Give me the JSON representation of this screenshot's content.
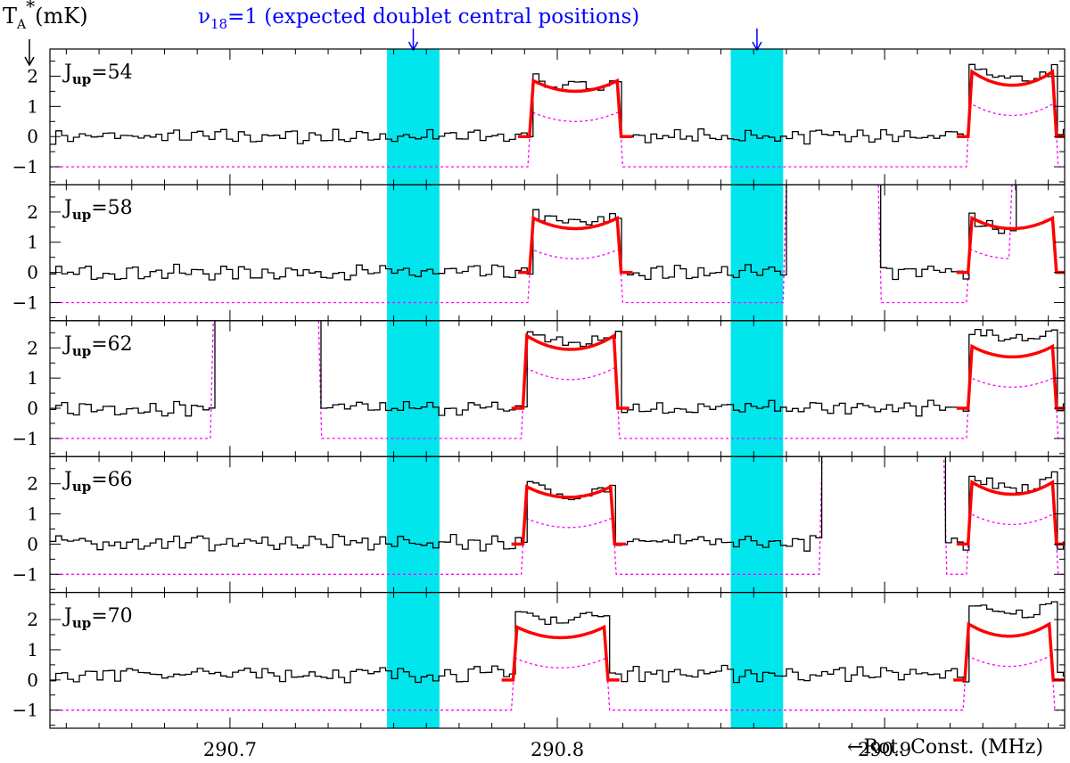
{
  "title_prefix": "ν",
  "title_sub": "18",
  "title_rest": "=1 (expected doublet central positions)",
  "ylabel_main": "T",
  "ylabel_sub": "A",
  "ylabel_sup": "*",
  "ylabel_rest": "(mK)",
  "xlabel": "Rot. Const. (MHz)",
  "chart_data": {
    "type": "line",
    "x_range": [
      290.645,
      290.955
    ],
    "ylim": [
      -1.6,
      2.9
    ],
    "x_ticks": [
      290.7,
      290.8,
      290.9
    ],
    "x_tick_labels": [
      "290.7",
      "290.8",
      "290.9"
    ],
    "y_ticks": [
      -1,
      0,
      1,
      2
    ],
    "y_tick_labels": [
      "−1",
      "0",
      "1",
      "2"
    ],
    "colors": {
      "observed": "#000000",
      "fit": "#ff0000",
      "model": "#ff00ff",
      "band": "#00e6ec"
    },
    "highlight_bands": [
      [
        290.748,
        290.764
      ],
      [
        290.853,
        290.869
      ]
    ],
    "band_arrows": [
      290.756,
      290.861
    ],
    "panels": [
      {
        "label": "J",
        "label_sub": "up",
        "label_value": "=54",
        "features": [
          {
            "lo": 290.7915,
            "hi": 290.8195,
            "peak": 1.85,
            "mid": 1.5,
            "obs_over": 0.15
          },
          {
            "lo": 290.9255,
            "hi": 290.9525,
            "peak": 2.15,
            "mid": 1.7,
            "obs_over": 0.2
          }
        ],
        "noise": [
          {
            "x0": 290.645,
            "x1": 290.955,
            "amp": 0.15,
            "base": 0.0
          }
        ],
        "strong": []
      },
      {
        "label": "J",
        "label_sub": "up",
        "label_value": "=58",
        "features": [
          {
            "lo": 290.7915,
            "hi": 290.8195,
            "peak": 1.8,
            "mid": 1.45,
            "obs_over": 0.15
          },
          {
            "lo": 290.9255,
            "hi": 290.9525,
            "peak": 1.8,
            "mid": 1.45,
            "obs_over": 0.0
          }
        ],
        "noise": [
          {
            "x0": 290.645,
            "x1": 290.955,
            "amp": 0.15,
            "base": 0.0
          }
        ],
        "strong": [
          {
            "lo": 290.869,
            "hi": 290.8985
          },
          {
            "lo": 290.9385,
            "hi": 290.957
          }
        ]
      },
      {
        "label": "J",
        "label_sub": "up",
        "label_value": "=62",
        "features": [
          {
            "lo": 290.7895,
            "hi": 290.8185,
            "peak": 2.4,
            "mid": 1.95,
            "obs_over": 0.2
          },
          {
            "lo": 290.9255,
            "hi": 290.9525,
            "peak": 2.05,
            "mid": 1.7,
            "obs_over": 0.6
          }
        ],
        "noise": [
          {
            "x0": 290.645,
            "x1": 290.955,
            "amp": 0.15,
            "base": 0.0
          }
        ],
        "strong": [
          {
            "lo": 290.6945,
            "hi": 290.7275
          }
        ]
      },
      {
        "label": "J",
        "label_sub": "up",
        "label_value": "=66",
        "features": [
          {
            "lo": 290.7895,
            "hi": 290.8175,
            "peak": 1.9,
            "mid": 1.55,
            "obs_over": 0.1
          },
          {
            "lo": 290.9255,
            "hi": 290.9525,
            "peak": 2.05,
            "mid": 1.65,
            "obs_over": 0.25
          }
        ],
        "noise": [
          {
            "x0": 290.645,
            "x1": 290.955,
            "amp": 0.18,
            "base": 0.05
          }
        ],
        "strong": [
          {
            "lo": 290.8805,
            "hi": 290.9185
          }
        ]
      },
      {
        "label": "J",
        "label_sub": "up",
        "label_value": "=70",
        "features": [
          {
            "lo": 290.7865,
            "hi": 290.8155,
            "peak": 1.75,
            "mid": 1.4,
            "obs_over": 0.6
          },
          {
            "lo": 290.9245,
            "hi": 290.9515,
            "peak": 1.85,
            "mid": 1.45,
            "obs_over": 0.7
          }
        ],
        "noise": [
          {
            "x0": 290.645,
            "x1": 290.955,
            "amp": 0.18,
            "base": 0.2
          }
        ],
        "strong": []
      }
    ]
  }
}
